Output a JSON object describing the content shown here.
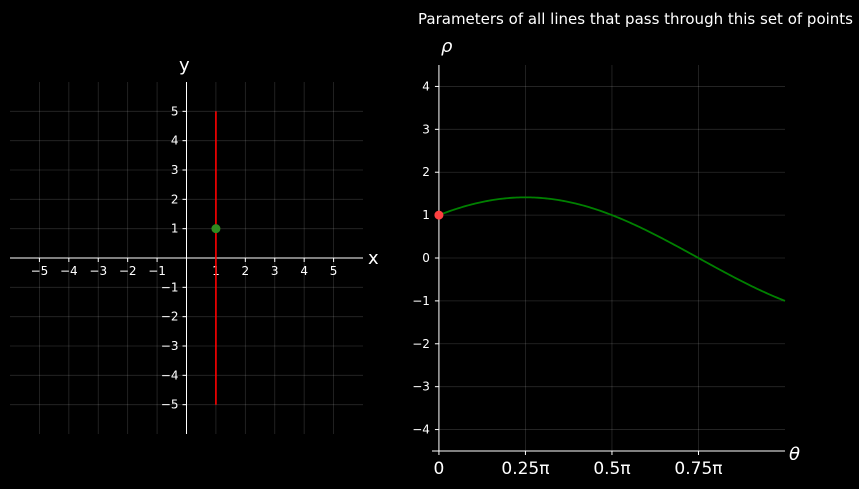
{
  "chart_data": [
    {
      "type": "line",
      "name_hint": "image-space",
      "xlabel": "x",
      "ylabel": "y",
      "xlim": [
        -6,
        6
      ],
      "ylim": [
        -6,
        6
      ],
      "grid": true,
      "xticks": [
        {
          "value": -5,
          "label": "−5"
        },
        {
          "value": -4,
          "label": "−4"
        },
        {
          "value": -3,
          "label": "−3"
        },
        {
          "value": -2,
          "label": "−2"
        },
        {
          "value": -1,
          "label": "−1"
        },
        {
          "value": 1,
          "label": "1"
        },
        {
          "value": 2,
          "label": "2"
        },
        {
          "value": 3,
          "label": "3"
        },
        {
          "value": 4,
          "label": "4"
        },
        {
          "value": 5,
          "label": "5"
        }
      ],
      "yticks": [
        {
          "value": -5,
          "label": "−5"
        },
        {
          "value": -4,
          "label": "−4"
        },
        {
          "value": -3,
          "label": "−3"
        },
        {
          "value": -2,
          "label": "−2"
        },
        {
          "value": -1,
          "label": "−1"
        },
        {
          "value": 1,
          "label": "1"
        },
        {
          "value": 2,
          "label": "2"
        },
        {
          "value": 3,
          "label": "3"
        },
        {
          "value": 4,
          "label": "4"
        },
        {
          "value": 5,
          "label": "5"
        }
      ],
      "lines": [
        {
          "x": [
            1,
            1
          ],
          "y": [
            -5,
            5
          ],
          "color": "#ff0000"
        }
      ],
      "points": [
        {
          "x": 1,
          "y": 1,
          "color": "#2e8b1f"
        }
      ]
    },
    {
      "type": "line",
      "title": "Parameters of all lines that pass through this set of points",
      "xlabel": "θ",
      "ylabel": "ρ",
      "xlim_pi": [
        -0.02,
        1.0
      ],
      "ylim": [
        -4.5,
        4.5
      ],
      "grid": true,
      "xticks": [
        {
          "value_pi": 0,
          "label": "0"
        },
        {
          "value_pi": 0.25,
          "label": "0.25π"
        },
        {
          "value_pi": 0.5,
          "label": "0.5π"
        },
        {
          "value_pi": 0.75,
          "label": "0.75π"
        }
      ],
      "yticks": [
        {
          "value": -4,
          "label": "−4"
        },
        {
          "value": -3,
          "label": "−3"
        },
        {
          "value": -2,
          "label": "−2"
        },
        {
          "value": -1,
          "label": "−1"
        },
        {
          "value": 0,
          "label": "0"
        },
        {
          "value": 1,
          "label": "1"
        },
        {
          "value": 2,
          "label": "2"
        },
        {
          "value": 3,
          "label": "3"
        },
        {
          "value": 4,
          "label": "4"
        }
      ],
      "series": [
        {
          "formula": "rho = 1*cos(theta) + 1*sin(theta)",
          "point_x": 1,
          "point_y": 1,
          "theta_range_pi": [
            0,
            1
          ],
          "color": "#008000"
        }
      ],
      "points": [
        {
          "theta_pi": 0,
          "rho": 1,
          "color": "#ff4040"
        }
      ]
    }
  ]
}
